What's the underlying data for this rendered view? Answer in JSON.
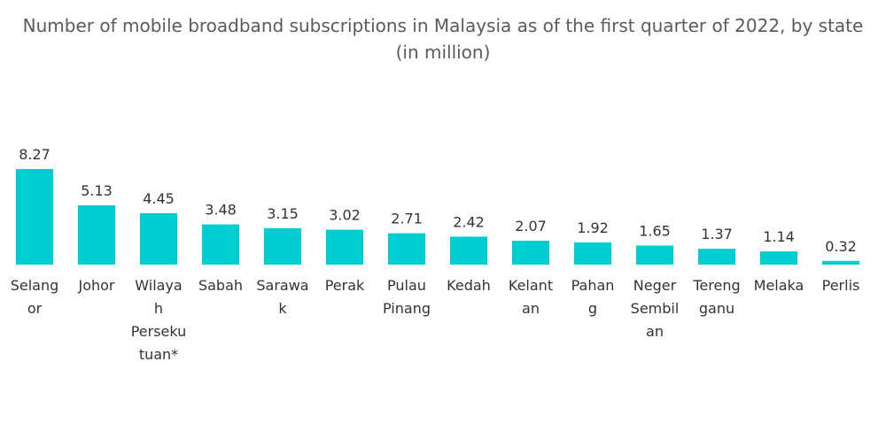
{
  "chart_data": {
    "type": "bar",
    "title": "Number of mobile broadband subscriptions in Malaysia as of the first quarter of 2022, by state (in million)",
    "categories": [
      "Selangor",
      "Johor",
      "Wilayah Persekutuan*",
      "Sabah",
      "Sarawak",
      "Perak",
      "Pulau Pinang",
      "Kedah",
      "Kelantan",
      "Pahang",
      "Negeri Sembilan",
      "Terengganu",
      "Melaka",
      "Perlis"
    ],
    "category_label_lines": [
      [
        "Selang",
        "or"
      ],
      [
        "Johor"
      ],
      [
        "Wilaya",
        "h",
        "Perseku",
        "tuan*"
      ],
      [
        "Sabah"
      ],
      [
        "Sarawa",
        "k"
      ],
      [
        "Perak"
      ],
      [
        "Pulau",
        "Pinang"
      ],
      [
        "Kedah"
      ],
      [
        "Kelant",
        "an"
      ],
      [
        "Pahan",
        "g"
      ],
      [
        "Neger",
        "Sembil",
        "an"
      ],
      [
        "Tereng",
        "ganu"
      ],
      [
        "Melaka"
      ],
      [
        "Perlis"
      ]
    ],
    "values": [
      8.27,
      5.13,
      4.45,
      3.48,
      3.15,
      3.02,
      2.71,
      2.42,
      2.07,
      1.92,
      1.65,
      1.37,
      1.14,
      0.32
    ],
    "value_labels": [
      "8.27",
      "5.13",
      "4.45",
      "3.48",
      "3.15",
      "3.02",
      "2.71",
      "2.42",
      "2.07",
      "1.92",
      "1.65",
      "1.37",
      "1.14",
      "0.32"
    ],
    "xlabel": "",
    "ylabel": "",
    "ylim": [
      0,
      8.27
    ],
    "grid": false,
    "legend": "none",
    "bar_color": "#00ced1"
  }
}
